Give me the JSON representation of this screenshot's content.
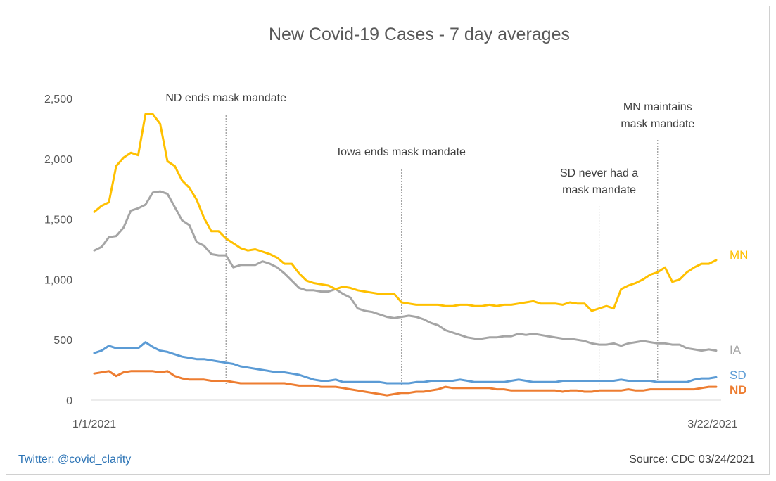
{
  "colors": {
    "MN": "#ffc000",
    "IA": "#a5a5a5",
    "SD": "#5b9bd5",
    "ND": "#ed7d31",
    "text": "#595959",
    "annotation_line": "#7f7f7f",
    "twitter": "#2e75b6"
  },
  "footer": {
    "twitter": "Twitter: @covid_clarity",
    "source": "Source: CDC  03/24/2021"
  },
  "chart_data": {
    "type": "line",
    "title": "New Covid-19 Cases - 7 day averages",
    "x_start_label": "1/1/2021",
    "x_end_label": "3/22/2021",
    "ylim": [
      0,
      2500
    ],
    "yticks": [
      0,
      500,
      1000,
      1500,
      2000,
      2500
    ],
    "ytick_labels": [
      "0",
      "500",
      "1,000",
      "1,500",
      "2,000",
      "2,500"
    ],
    "grid": false,
    "legend": "end-of-line labels",
    "annotations": [
      {
        "lines": [
          "ND ends mask mandate"
        ],
        "x_index": 18
      },
      {
        "lines": [
          "Iowa ends mask mandate"
        ],
        "x_index": 42
      },
      {
        "lines": [
          "SD never had a",
          "mask mandate"
        ],
        "x_index": 69
      },
      {
        "lines": [
          "MN maintains",
          "mask mandate"
        ],
        "x_index": 77
      }
    ],
    "series": [
      {
        "name": "MN",
        "values": [
          1560,
          1610,
          1640,
          1940,
          2010,
          2050,
          2030,
          2370,
          2370,
          2290,
          1980,
          1940,
          1820,
          1760,
          1660,
          1510,
          1400,
          1400,
          1340,
          1300,
          1260,
          1240,
          1250,
          1230,
          1210,
          1180,
          1130,
          1130,
          1050,
          990,
          970,
          960,
          950,
          920,
          940,
          930,
          910,
          900,
          890,
          880,
          880,
          880,
          810,
          800,
          790,
          790,
          790,
          790,
          780,
          780,
          790,
          790,
          780,
          780,
          790,
          780,
          790,
          790,
          800,
          810,
          820,
          800,
          800,
          800,
          790,
          810,
          800,
          800,
          740,
          760,
          780,
          760,
          920,
          950,
          970,
          1000,
          1040,
          1060,
          1100,
          980,
          1000,
          1060,
          1100,
          1130,
          1130,
          1160
        ]
      },
      {
        "name": "IA",
        "values": [
          1240,
          1270,
          1350,
          1360,
          1430,
          1570,
          1590,
          1620,
          1720,
          1730,
          1710,
          1600,
          1490,
          1450,
          1310,
          1280,
          1210,
          1200,
          1200,
          1100,
          1120,
          1120,
          1120,
          1150,
          1130,
          1100,
          1050,
          990,
          930,
          910,
          910,
          900,
          900,
          920,
          880,
          850,
          760,
          740,
          730,
          710,
          690,
          680,
          690,
          700,
          690,
          670,
          640,
          620,
          580,
          560,
          540,
          520,
          510,
          510,
          520,
          520,
          530,
          530,
          550,
          540,
          550,
          540,
          530,
          520,
          510,
          510,
          500,
          490,
          470,
          460,
          460,
          470,
          450,
          470,
          480,
          490,
          480,
          470,
          470,
          460,
          460,
          430,
          420,
          410,
          420,
          410
        ]
      },
      {
        "name": "SD",
        "values": [
          390,
          410,
          450,
          430,
          430,
          430,
          430,
          480,
          440,
          410,
          400,
          380,
          360,
          350,
          340,
          340,
          330,
          320,
          310,
          300,
          280,
          270,
          260,
          250,
          240,
          230,
          230,
          220,
          210,
          190,
          170,
          160,
          160,
          170,
          150,
          150,
          150,
          150,
          150,
          150,
          140,
          140,
          140,
          140,
          150,
          150,
          160,
          160,
          160,
          160,
          170,
          160,
          150,
          150,
          150,
          150,
          150,
          160,
          170,
          160,
          150,
          150,
          150,
          150,
          160,
          160,
          160,
          160,
          160,
          160,
          160,
          160,
          170,
          160,
          160,
          160,
          160,
          150,
          150,
          150,
          150,
          150,
          170,
          180,
          180,
          190
        ]
      },
      {
        "name": "ND",
        "values": [
          220,
          230,
          240,
          200,
          230,
          240,
          240,
          240,
          240,
          230,
          240,
          200,
          180,
          170,
          170,
          170,
          160,
          160,
          160,
          150,
          140,
          140,
          140,
          140,
          140,
          140,
          140,
          130,
          120,
          120,
          120,
          110,
          110,
          110,
          100,
          90,
          80,
          70,
          60,
          50,
          40,
          50,
          60,
          60,
          70,
          70,
          80,
          90,
          110,
          100,
          100,
          100,
          100,
          100,
          100,
          90,
          90,
          80,
          80,
          80,
          80,
          80,
          80,
          80,
          70,
          80,
          80,
          70,
          70,
          80,
          80,
          80,
          80,
          90,
          80,
          80,
          90,
          90,
          90,
          90,
          90,
          90,
          90,
          100,
          110,
          110
        ]
      }
    ]
  }
}
